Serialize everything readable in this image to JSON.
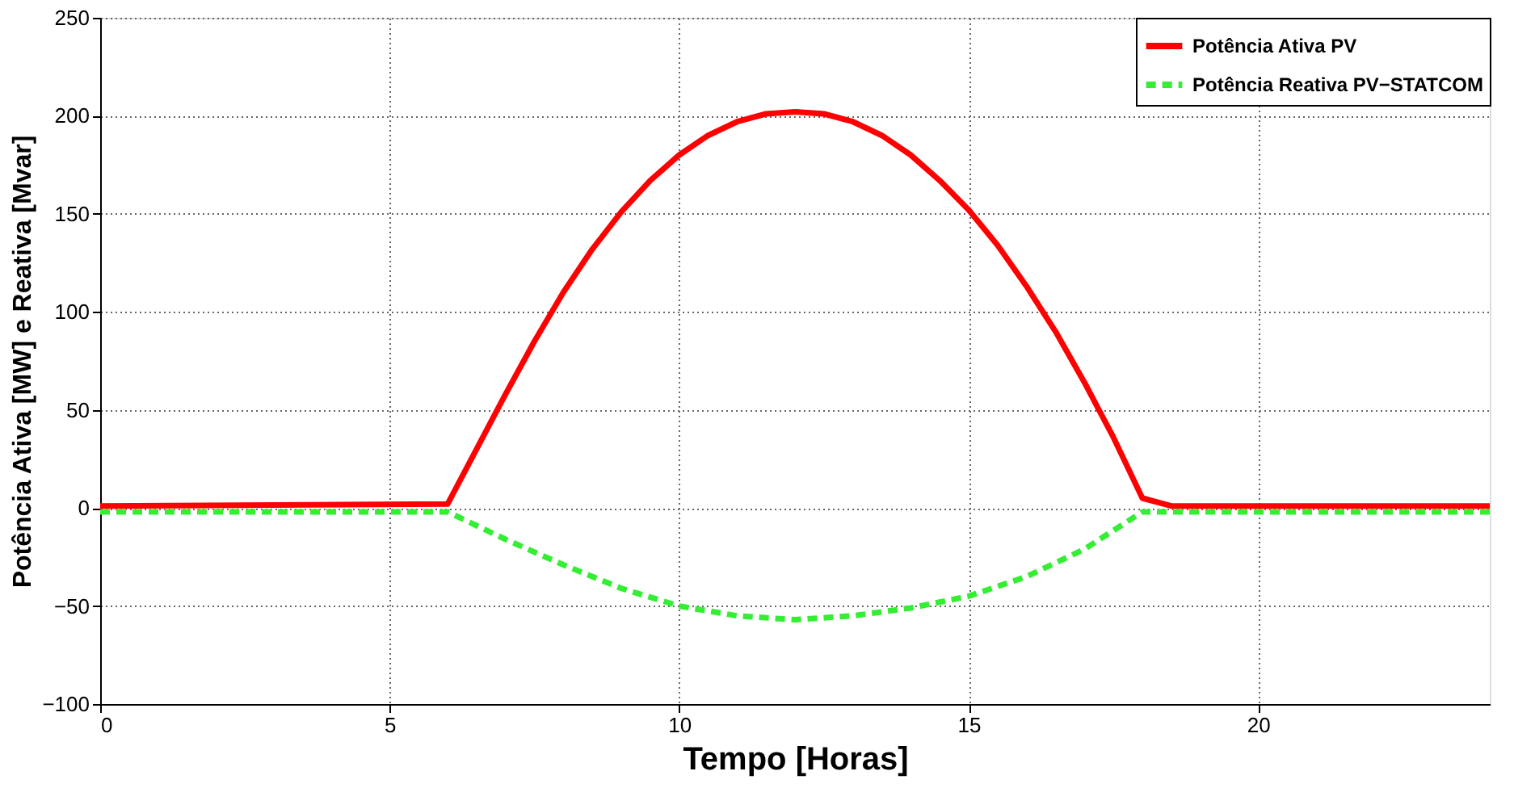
{
  "chart_data": {
    "type": "line",
    "xlabel": "Tempo [Horas]",
    "ylabel": "Potência Ativa [MW] e Reativa [Mvar]",
    "xlim": [
      0,
      24
    ],
    "xticks": [
      0,
      5,
      10,
      15,
      20
    ],
    "ylim": [
      -100,
      250
    ],
    "yticks": [
      -100,
      -50,
      0,
      50,
      100,
      150,
      200,
      250
    ],
    "grid": true,
    "legend": "top right",
    "marker": "none",
    "series": [
      {
        "name": "Potência Ativa PV",
        "color": "#ff0000",
        "line_style": "solid",
        "x": [
          0,
          6,
          6.5,
          7,
          7.5,
          8,
          8.5,
          9,
          9.5,
          10,
          10.5,
          11,
          11.5,
          12,
          12.5,
          13,
          13.5,
          14,
          14.5,
          15,
          15.5,
          16,
          16.5,
          17,
          17.5,
          18,
          18.5,
          24
        ],
        "values": [
          1,
          2,
          30,
          58,
          85,
          110,
          132,
          151,
          167,
          180,
          190,
          197,
          201,
          202,
          201,
          197,
          190,
          180,
          167,
          152,
          134,
          113,
          90,
          64,
          36,
          5,
          1,
          1
        ]
      },
      {
        "name": "Potência Reativa PV−STATCOM",
        "color": "#33ee33",
        "line_style": "dashed",
        "x": [
          0,
          6,
          6.5,
          7,
          8,
          9,
          10,
          11,
          12,
          13,
          14,
          15,
          16,
          17,
          18,
          24
        ],
        "values": [
          -2,
          -2,
          -9,
          -16,
          -29,
          -41,
          -50,
          -55,
          -57,
          -55,
          -51,
          -45,
          -35,
          -21,
          -2,
          -2
        ]
      }
    ]
  }
}
